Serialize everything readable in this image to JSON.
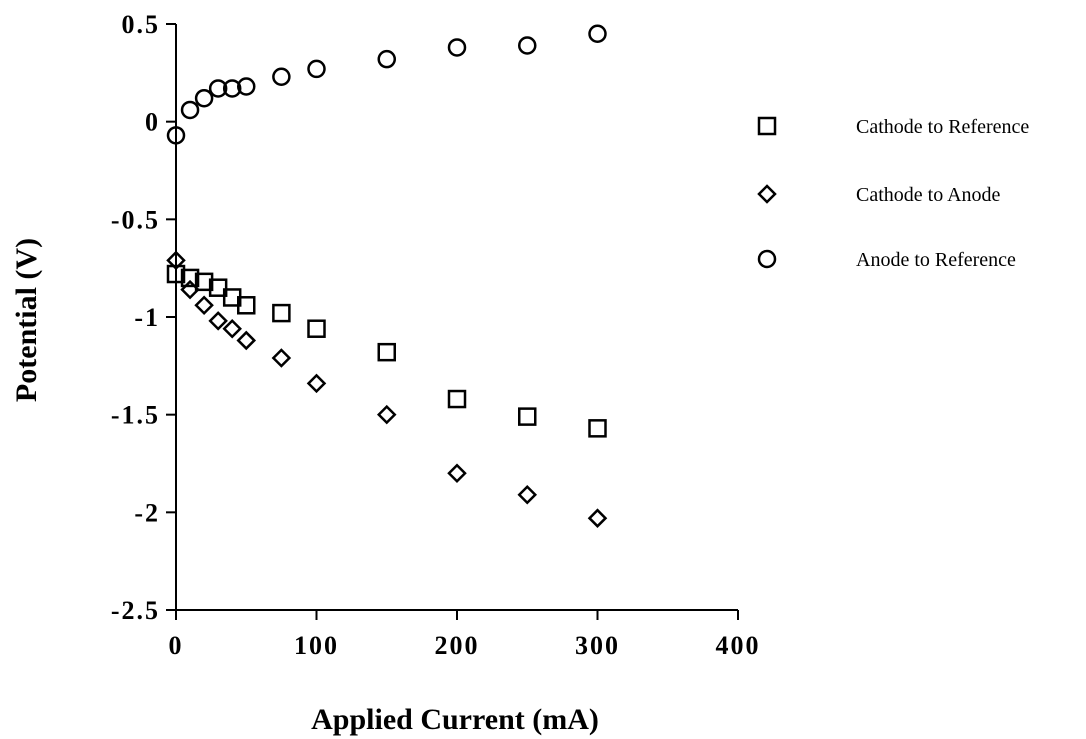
{
  "chart_data": {
    "type": "scatter",
    "title": "",
    "xlabel": "Applied Current (mA)",
    "ylabel": "Potential (V)",
    "xlim": [
      0,
      400
    ],
    "ylim": [
      -2.5,
      0.5
    ],
    "x_ticks": [
      0,
      100,
      200,
      300,
      400
    ],
    "x_tick_labels": [
      "0",
      "100",
      "200",
      "300",
      "400"
    ],
    "y_ticks": [
      0.5,
      0,
      -0.5,
      -1,
      -1.5,
      -2,
      -2.5
    ],
    "y_tick_labels": [
      "0.5",
      "0",
      "-0.5",
      "-1",
      "-1.5",
      "-2",
      "-2.5"
    ],
    "grid": false,
    "legend_position": "right",
    "series": [
      {
        "name": "Cathode to Reference",
        "marker": "square",
        "color": "#000000",
        "x": [
          0,
          10,
          20,
          30,
          40,
          50,
          75,
          100,
          150,
          200,
          250,
          300
        ],
        "y": [
          -0.78,
          -0.8,
          -0.82,
          -0.85,
          -0.9,
          -0.94,
          -0.98,
          -1.06,
          -1.18,
          -1.42,
          -1.51,
          -1.57
        ]
      },
      {
        "name": "Cathode to Anode",
        "marker": "diamond",
        "color": "#000000",
        "x": [
          0,
          10,
          20,
          30,
          40,
          50,
          75,
          100,
          150,
          200,
          250,
          300
        ],
        "y": [
          -0.71,
          -0.86,
          -0.94,
          -1.02,
          -1.06,
          -1.12,
          -1.21,
          -1.34,
          -1.5,
          -1.8,
          -1.91,
          -2.03
        ]
      },
      {
        "name": "Anode to Reference",
        "marker": "circle",
        "color": "#000000",
        "x": [
          0,
          10,
          20,
          30,
          40,
          50,
          75,
          100,
          150,
          200,
          250,
          300
        ],
        "y": [
          -0.07,
          0.06,
          0.12,
          0.17,
          0.17,
          0.18,
          0.23,
          0.27,
          0.32,
          0.38,
          0.39,
          0.45
        ]
      }
    ]
  }
}
